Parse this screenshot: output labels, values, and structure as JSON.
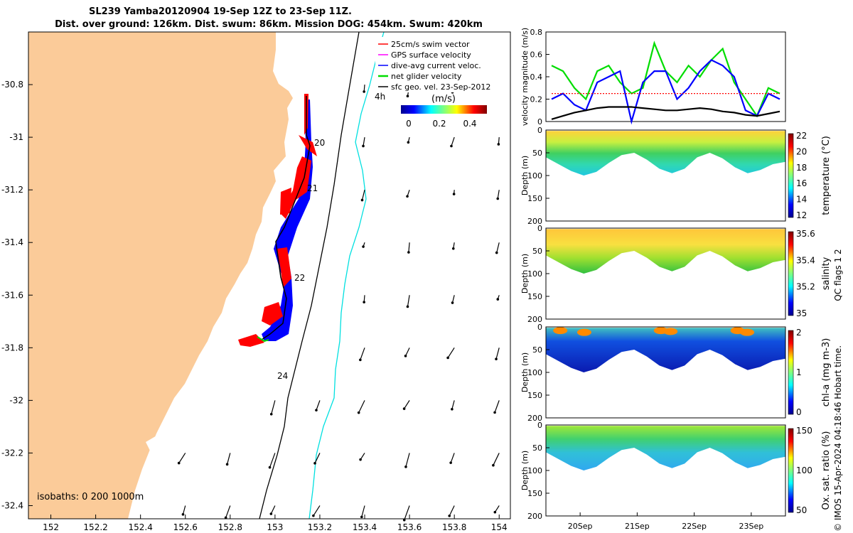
{
  "header": {
    "title_line1": "SL239 Yamba20120904 19-Sep 12Z to 23-Sep 11Z.",
    "title_line2": "Dist. over ground: 126km. Dist. swum: 86km. Mission DOG: 454km. Swum: 420km"
  },
  "colors": {
    "land": "#fbcb99",
    "ocean": "#ffffff",
    "track_red": "#ff0000",
    "track_blue": "#0000ff",
    "net_green": "#00dd00",
    "isobath_1000": "#00e0e0",
    "isobath_200": "#000000"
  },
  "chart_data": [
    {
      "id": "map",
      "type": "scatter",
      "title": "Glider track and velocities",
      "xlabel": "",
      "ylabel": "",
      "xlim": [
        151.9,
        154.05
      ],
      "ylim": [
        -32.45,
        -30.6
      ],
      "xticks": [
        "152",
        "152.2",
        "152.4",
        "152.6",
        "152.8",
        "153",
        "153.2",
        "153.4",
        "153.6",
        "153.8",
        "154"
      ],
      "yticks": [
        "-30.8",
        "-31",
        "-31.2",
        "-31.4",
        "-31.6",
        "-31.8",
        "-32",
        "-32.2",
        "-32.4"
      ],
      "legend": [
        {
          "label": "25cm/s swim vector",
          "color": "#ff0000"
        },
        {
          "label": "GPS surface velocity",
          "color": "#ff00ff"
        },
        {
          "label": "dive-avg current veloc.",
          "color": "#0000ff"
        },
        {
          "label": "net glider velocity",
          "color": "#00dd00"
        },
        {
          "label": "sfc geo. vel. 23-Sep-2012",
          "color": "#000000"
        }
      ],
      "legend_note": "4h",
      "colorbar": {
        "label": "(m/s)",
        "ticks": [
          "0",
          "0.2",
          "0.4"
        ]
      },
      "day_labels": [
        "20",
        "21",
        "22",
        "24"
      ],
      "isobath_label": "isobaths: 0   200   1000m",
      "track": [
        [
          153.11,
          -30.93
        ],
        [
          153.1,
          -31.05
        ],
        [
          153.13,
          -31.1
        ],
        [
          153.1,
          -31.2
        ],
        [
          153.05,
          -31.3
        ],
        [
          153.0,
          -31.4
        ],
        [
          153.02,
          -31.55
        ],
        [
          153.05,
          -31.65
        ],
        [
          153.0,
          -31.75
        ],
        [
          152.95,
          -31.8
        ]
      ]
    },
    {
      "id": "velocity",
      "type": "line",
      "ylabel": "velocity magnitude (m/s)",
      "ylim": [
        0,
        0.8
      ],
      "yticks": [
        "0",
        "0.2",
        "0.4",
        "0.6",
        "0.8"
      ],
      "x": [
        19.5,
        19.7,
        19.9,
        20.1,
        20.3,
        20.5,
        20.7,
        20.9,
        21.1,
        21.3,
        21.5,
        21.7,
        21.9,
        22.1,
        22.3,
        22.5,
        22.7,
        22.9,
        23.1,
        23.3,
        23.5
      ],
      "series": [
        {
          "name": "net glider velocity",
          "color": "#00dd00",
          "values": [
            0.5,
            0.45,
            0.3,
            0.2,
            0.45,
            0.5,
            0.35,
            0.25,
            0.3,
            0.7,
            0.45,
            0.35,
            0.5,
            0.4,
            0.55,
            0.65,
            0.35,
            0.2,
            0.05,
            0.3,
            0.25
          ]
        },
        {
          "name": "dive-avg current veloc.",
          "color": "#0000ff",
          "values": [
            0.2,
            0.25,
            0.15,
            0.1,
            0.35,
            0.4,
            0.45,
            0.0,
            0.35,
            0.45,
            0.45,
            0.2,
            0.3,
            0.45,
            0.55,
            0.5,
            0.4,
            0.1,
            0.05,
            0.25,
            0.2
          ]
        },
        {
          "name": "25cm/s swim vector",
          "color": "#ff0000",
          "values": [
            0.25,
            0.25,
            0.25,
            0.25,
            0.25,
            0.25,
            0.25,
            0.25,
            0.25,
            0.25,
            0.25,
            0.25,
            0.25,
            0.25,
            0.25,
            0.25,
            0.25,
            0.25,
            0.25,
            0.25,
            0.25
          ]
        },
        {
          "name": "sfc geo. vel.",
          "color": "#000000",
          "values": [
            0.02,
            0.05,
            0.08,
            0.1,
            0.12,
            0.13,
            0.13,
            0.13,
            0.12,
            0.11,
            0.1,
            0.1,
            0.11,
            0.12,
            0.11,
            0.09,
            0.08,
            0.06,
            0.05,
            0.07,
            0.09
          ]
        }
      ]
    },
    {
      "id": "temperature",
      "type": "heatmap",
      "ylabel": "Depth (m)",
      "ylim": [
        0,
        200
      ],
      "yticks": [
        "0",
        "50",
        "100",
        "150",
        "200"
      ],
      "colorbar_label": "temperature (°C)",
      "colorbar_ticks": [
        "22",
        "20",
        "18",
        "16",
        "14",
        "12"
      ],
      "bottom_depth": [
        60,
        75,
        90,
        100,
        92,
        72,
        55,
        50,
        65,
        85,
        95,
        85,
        60,
        50,
        62,
        82,
        95,
        88,
        75,
        70
      ]
    },
    {
      "id": "salinity",
      "type": "heatmap",
      "ylabel": "Depth (m)",
      "ylim": [
        0,
        200
      ],
      "yticks": [
        "0",
        "50",
        "100",
        "150",
        "200"
      ],
      "colorbar_label": "salinity",
      "colorbar_ticks": [
        "35.6",
        "35.4",
        "35.2",
        "35"
      ],
      "bottom_depth": [
        60,
        75,
        90,
        100,
        92,
        72,
        55,
        50,
        65,
        85,
        95,
        85,
        60,
        50,
        62,
        82,
        95,
        88,
        75,
        70
      ]
    },
    {
      "id": "chla",
      "type": "heatmap",
      "ylabel": "Depth (m)",
      "ylim": [
        0,
        200
      ],
      "yticks": [
        "0",
        "50",
        "100",
        "150",
        "200"
      ],
      "colorbar_label": "chl-a (mg m-3)",
      "colorbar_ticks": [
        "2",
        "1",
        "0"
      ],
      "bottom_depth": [
        60,
        75,
        90,
        100,
        92,
        72,
        55,
        50,
        65,
        85,
        95,
        85,
        60,
        50,
        62,
        82,
        95,
        88,
        75,
        70
      ]
    },
    {
      "id": "oxygen",
      "type": "heatmap",
      "ylabel": "Depth (m)",
      "ylim": [
        0,
        200
      ],
      "yticks": [
        "0",
        "50",
        "100",
        "150",
        "200"
      ],
      "colorbar_label": "Ox. sat. ratio (%)",
      "colorbar_ticks": [
        "150",
        "100",
        "50"
      ],
      "xticks": [
        "20Sep",
        "21Sep",
        "22Sep",
        "23Sep"
      ],
      "bottom_depth": [
        60,
        75,
        90,
        100,
        92,
        72,
        55,
        50,
        65,
        85,
        95,
        85,
        60,
        50,
        62,
        82,
        95,
        88,
        75,
        70
      ]
    }
  ],
  "footer": {
    "qc_note": "QC flags 1  2",
    "credit": "© IMOS 15-Apr-2024 04:18:46 Hobart time."
  }
}
